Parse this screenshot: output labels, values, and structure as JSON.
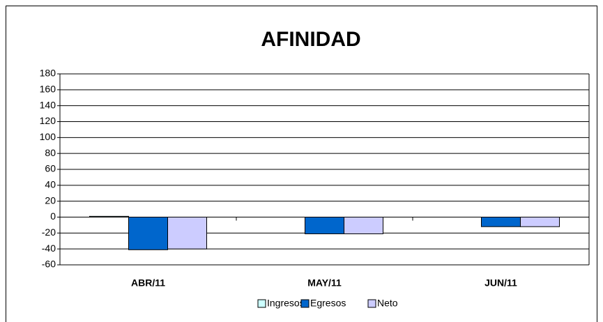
{
  "chart_data": {
    "type": "bar",
    "title": "AFINIDAD",
    "categories": [
      "ABR/11",
      "MAY/11",
      "JUN/11"
    ],
    "series": [
      {
        "name": "Ingresos",
        "color": "#ccffff",
        "values": [
          1,
          0,
          0
        ]
      },
      {
        "name": "Egresos",
        "color": "#0066cc",
        "values": [
          -41,
          -21,
          -12
        ]
      },
      {
        "name": "Neto",
        "color": "#ccccff",
        "values": [
          -40,
          -21,
          -12
        ]
      }
    ],
    "ylim": [
      -60,
      180
    ],
    "yticks": [
      -60,
      -40,
      -20,
      0,
      20,
      40,
      60,
      80,
      100,
      120,
      140,
      160,
      180
    ],
    "grid": true,
    "legend": "bottom"
  }
}
